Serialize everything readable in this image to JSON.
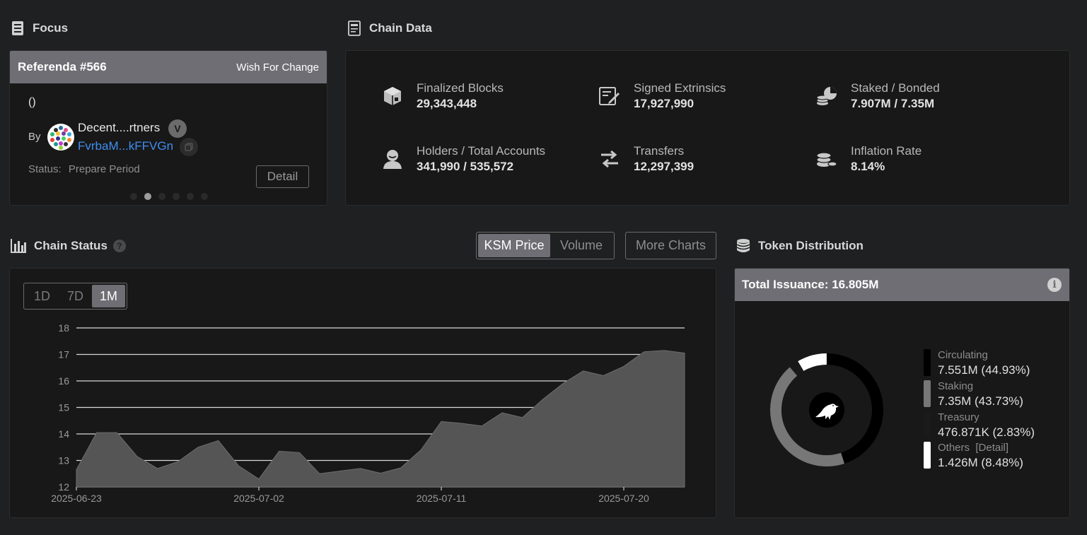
{
  "focus": {
    "title": "Focus",
    "referendum": "Referenda #566",
    "track": "Wish For Change",
    "proposal_text": "()",
    "by_label": "By",
    "author_name": "Decent....rtners",
    "verified_badge": "V",
    "author_address": "FvrbaM...kFFVGn",
    "status_label": "Status:",
    "status_value": "Prepare Period",
    "detail_button": "Detail",
    "carousel_dots": 6,
    "carousel_active": 1
  },
  "chain_data": {
    "title": "Chain Data",
    "stats": [
      {
        "label": "Finalized Blocks",
        "value": "29,343,448",
        "icon": "cube-icon"
      },
      {
        "label": "Signed Extrinsics",
        "value": "17,927,990",
        "icon": "signed-document-icon"
      },
      {
        "label": "Staked / Bonded",
        "value": "7.907M / 7.35M",
        "icon": "coins-pie-icon"
      },
      {
        "label": "Holders / Total Accounts",
        "value": "341,990 / 535,572",
        "icon": "user-icon"
      },
      {
        "label": "Transfers",
        "value": "12,297,399",
        "icon": "transfer-arrows-icon"
      },
      {
        "label": "Inflation Rate",
        "value": "8.14%",
        "icon": "coin-stack-icon"
      }
    ]
  },
  "chain_status": {
    "title": "Chain Status",
    "help": "?",
    "tabs": [
      "KSM Price",
      "Volume"
    ],
    "active_tab": "KSM Price",
    "more_charts": "More Charts",
    "ranges": [
      "1D",
      "7D",
      "1M"
    ],
    "active_range": "1M"
  },
  "chart_data": {
    "type": "area",
    "title": "KSM Price",
    "xlabel": "",
    "ylabel": "",
    "ylim": [
      12,
      18
    ],
    "yticks": [
      12,
      13,
      14,
      15,
      16,
      17,
      18
    ],
    "xtick_labels": [
      "2025-06-23",
      "2025-07-02",
      "2025-07-11",
      "2025-07-20"
    ],
    "xtick_index": [
      0,
      9,
      18,
      27
    ],
    "x": [
      "2025-06-23",
      "2025-06-24",
      "2025-06-25",
      "2025-06-26",
      "2025-06-27",
      "2025-06-28",
      "2025-06-29",
      "2025-06-30",
      "2025-07-01",
      "2025-07-02",
      "2025-07-03",
      "2025-07-04",
      "2025-07-05",
      "2025-07-06",
      "2025-07-07",
      "2025-07-08",
      "2025-07-09",
      "2025-07-10",
      "2025-07-11",
      "2025-07-12",
      "2025-07-13",
      "2025-07-14",
      "2025-07-15",
      "2025-07-16",
      "2025-07-17",
      "2025-07-18",
      "2025-07-19",
      "2025-07-20",
      "2025-07-21",
      "2025-07-22",
      "2025-07-23"
    ],
    "values": [
      12.65,
      14.05,
      14.05,
      13.15,
      12.7,
      12.95,
      13.5,
      13.75,
      12.8,
      12.3,
      13.35,
      13.3,
      12.5,
      12.6,
      12.7,
      12.52,
      12.72,
      13.4,
      14.47,
      14.4,
      14.3,
      14.8,
      14.62,
      15.3,
      15.9,
      16.38,
      16.2,
      16.55,
      17.1,
      17.15,
      17.05
    ]
  },
  "token_distribution": {
    "title": "Token Distribution",
    "total_issuance": "Total Issuance: 16.805M",
    "info": "i",
    "center_icon": "kusama-bird-icon",
    "segments": [
      {
        "name": "Circulating",
        "value": "7.551M (44.93%)",
        "percent": 44.93,
        "color": "#000000"
      },
      {
        "name": "Staking",
        "value": "7.35M (43.73%)",
        "percent": 43.73,
        "color": "#777777"
      },
      {
        "name": "Treasury",
        "value": "476.871K (2.83%)",
        "percent": 2.83,
        "color": "#1a1a1a"
      },
      {
        "name": "Others",
        "detail": "[Detail]",
        "value": "1.426M (8.48%)",
        "percent": 8.48,
        "color": "#ffffff"
      }
    ]
  }
}
